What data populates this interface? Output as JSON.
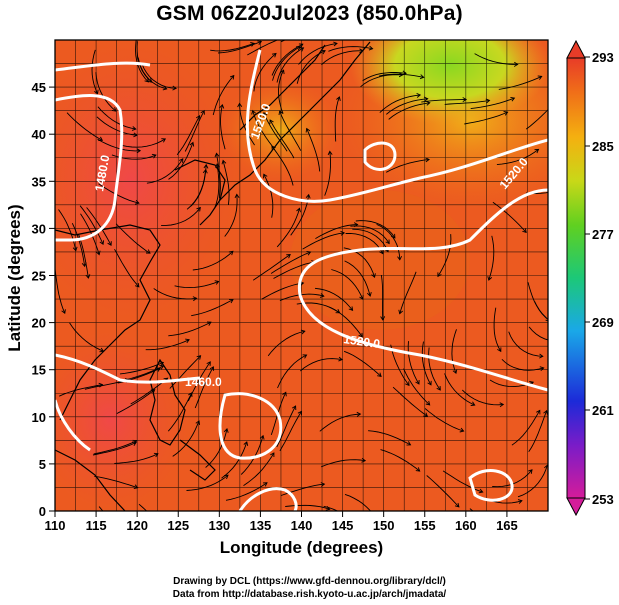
{
  "map": {
    "title": "GSM 06Z20Jul2023 (850.0hPa)",
    "xlabel": "Longitude (degrees)",
    "ylabel": "Latitude  (degrees)",
    "x_ticks": [
      "110",
      "115",
      "120",
      "125",
      "130",
      "135",
      "140",
      "145",
      "150",
      "155",
      "160",
      "165"
    ],
    "y_ticks": [
      "0",
      "5",
      "10",
      "15",
      "20",
      "25",
      "30",
      "35",
      "40",
      "45"
    ],
    "xlim": [
      110,
      170
    ],
    "ylim": [
      0,
      50
    ],
    "contour_labels": [
      "1460.0",
      "1520.0",
      "1480.0",
      "1520.0",
      "1520.0"
    ],
    "field": "temperature (K)",
    "vectors": "wind streamlines",
    "credit_line1": "Drawing by DCL (https://www.gfd-dennou.org/library/dcl/)",
    "credit_line2": "Data from http://database.rish.kyoto-u.ac.jp/arch/jmadata/"
  },
  "colorbar": {
    "ticks": [
      "293",
      "285",
      "277",
      "269",
      "261",
      "253"
    ],
    "range": [
      253,
      293
    ],
    "colors": [
      "#d81a8c",
      "#1c20d8",
      "#1aa0e8",
      "#20c860",
      "#9cdc18",
      "#f0c010",
      "#f07810",
      "#e83a1a"
    ]
  }
}
